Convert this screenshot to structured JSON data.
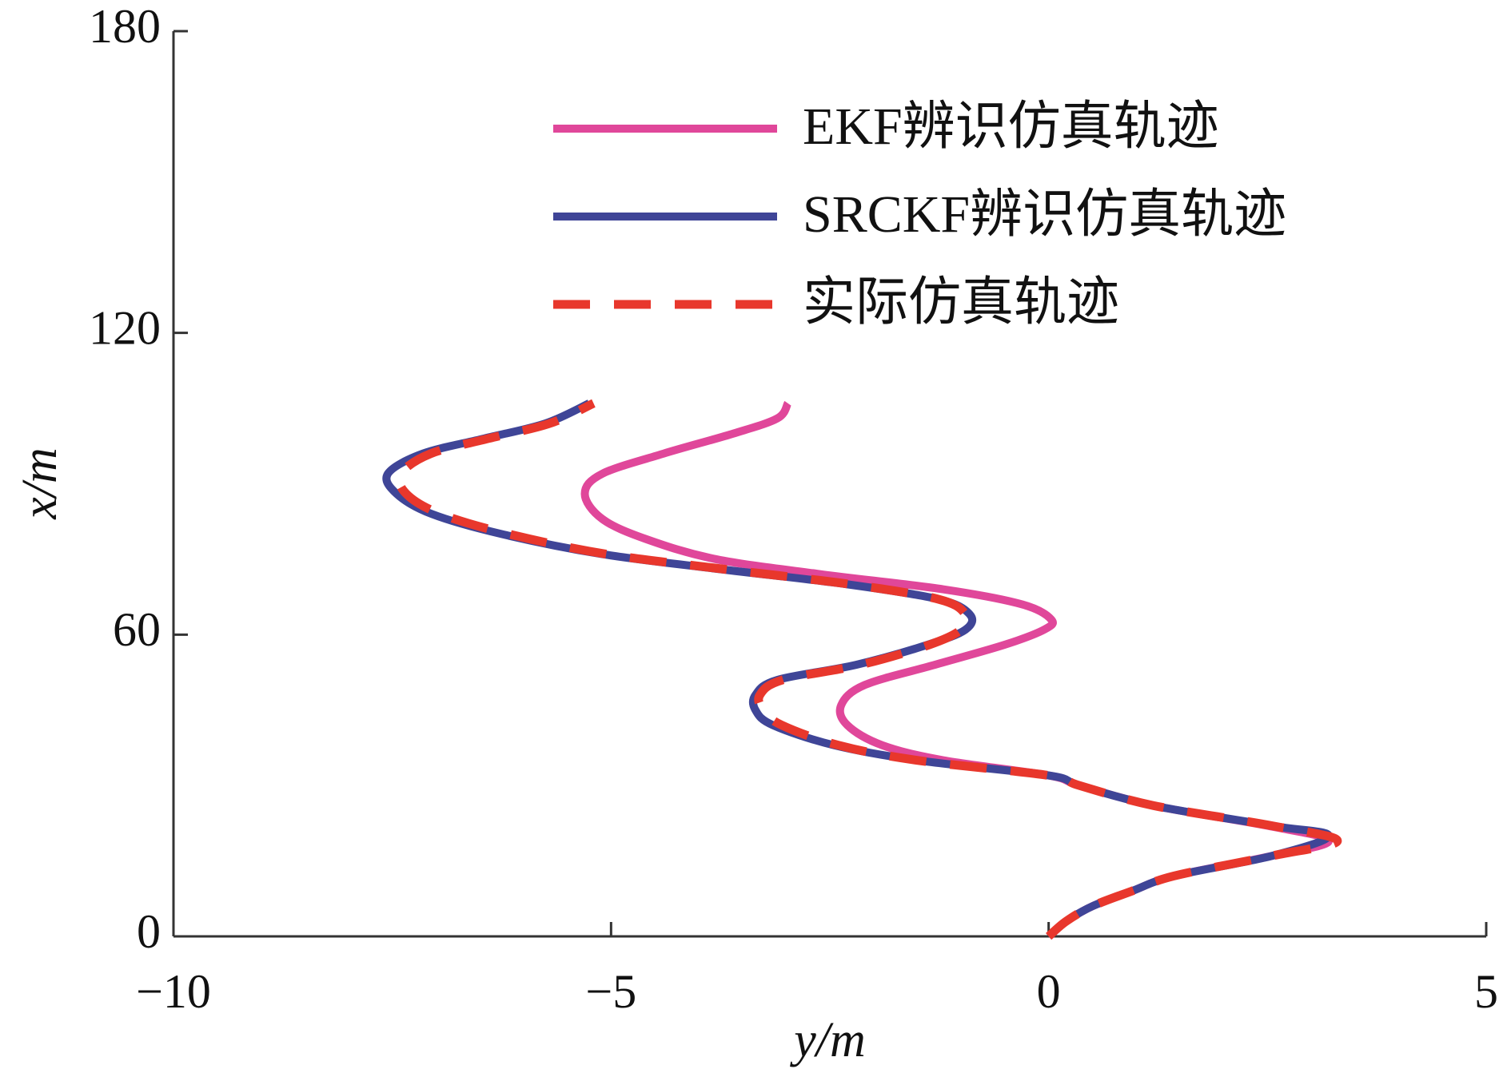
{
  "chart_data": {
    "type": "line",
    "xlabel": "y/m",
    "ylabel": "x/m",
    "xlim": [
      -10,
      5
    ],
    "xticks": [
      {
        "value": -10,
        "label": "−10"
      },
      {
        "value": -5,
        "label": "−5"
      },
      0,
      5
    ],
    "ylim": [
      0,
      180
    ],
    "yticks": [
      0,
      60,
      120,
      180
    ],
    "legend": "upper right",
    "grid": false,
    "series": [
      {
        "name": "EKF辨识仿真轨迹",
        "color": "#e0479a",
        "dash": false,
        "x": [
          0,
          0.2,
          0.5,
          0.95,
          1.43,
          2.55,
          3.2,
          2.5,
          1.2,
          0.35,
          0,
          -1.2,
          -1.9,
          -2.3,
          -2.37,
          -2.1,
          -1.3,
          -0.5,
          -0.05,
          0.03,
          -0.3,
          -1.2,
          -2.6,
          -3.8,
          -4.6,
          -5.1,
          -5.3,
          -5.1,
          -4.4,
          -3.6,
          -3.1,
          -2.98
        ],
        "values": [
          0,
          3,
          6,
          9,
          12,
          16,
          19,
          22,
          26,
          30,
          32,
          35,
          38,
          42,
          46,
          50,
          54,
          58,
          61,
          63,
          66,
          69,
          72,
          75,
          79,
          83,
          88,
          92,
          96,
          100,
          103,
          106
        ]
      },
      {
        "name": "SRCKF辨识仿真轨迹",
        "color": "#3f4597",
        "dash": false,
        "x": [
          0,
          0.2,
          0.5,
          0.95,
          1.43,
          2.55,
          3.2,
          2.55,
          1.2,
          0.35,
          0,
          -1.5,
          -2.45,
          -3.15,
          -3.35,
          -3.35,
          -3.1,
          -2.2,
          -1.38,
          -0.95,
          -0.9,
          -1.25,
          -2.3,
          -3.75,
          -5.1,
          -6.25,
          -7.05,
          -7.45,
          -7.55,
          -7.15,
          -6.45,
          -5.75,
          -5.25
        ],
        "values": [
          0,
          3,
          6,
          9,
          12,
          16,
          20,
          22,
          26,
          30,
          32,
          35,
          38,
          42,
          45,
          48,
          51,
          54,
          58,
          61,
          64,
          67,
          70,
          73,
          76,
          80,
          84,
          88,
          92,
          96,
          99,
          102,
          106
        ]
      },
      {
        "name": "实际仿真轨迹",
        "color": "#e8372c",
        "dash": true,
        "x": [
          0,
          0.2,
          0.5,
          0.95,
          1.43,
          2.55,
          3.3,
          2.55,
          1.2,
          0.35,
          0,
          -1.5,
          -2.4,
          -3.05,
          -3.26,
          -3.3,
          -3.04,
          -2.15,
          -1.36,
          -1.0,
          -0.95,
          -1.25,
          -2.26,
          -3.7,
          -5.05,
          -6.17,
          -6.95,
          -7.34,
          -7.4,
          -7.06,
          -6.4,
          -5.7,
          -5.2
        ],
        "values": [
          0,
          3,
          6,
          9,
          12,
          16,
          19,
          22,
          26,
          30,
          32,
          35,
          38,
          42,
          45,
          48,
          51,
          54,
          58,
          61,
          64,
          67,
          70,
          73,
          76,
          80,
          84,
          88,
          92,
          96,
          99,
          102,
          106
        ]
      }
    ]
  }
}
